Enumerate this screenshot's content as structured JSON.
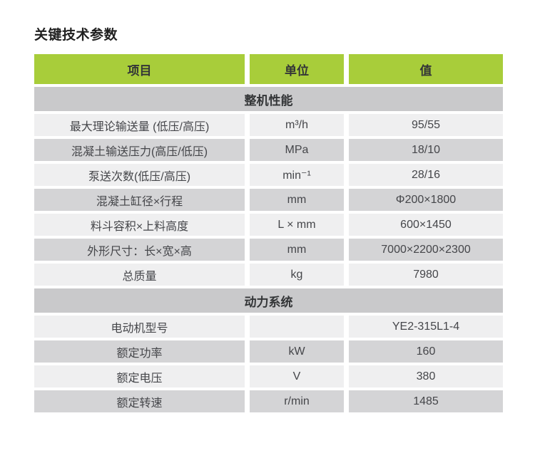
{
  "page": {
    "title": "关键技术参数"
  },
  "colors": {
    "accent_green": "#a8cd3a",
    "section_band_gray": "#c9c9cb",
    "row_light": "#efeff0",
    "row_dark": "#d4d4d6",
    "header_text": "#333537",
    "body_text": "#45464a"
  },
  "table": {
    "headers": [
      {
        "label": "项目"
      },
      {
        "label": "单位"
      },
      {
        "label": "值"
      }
    ],
    "sections": [
      {
        "title": "整机性能",
        "rows": [
          {
            "item": "最大理论输送量 (低压/高压)",
            "unit": "m³/h",
            "value": "95/55"
          },
          {
            "item": "混凝土输送压力(高压/低压)",
            "unit": "MPa",
            "value": "18/10"
          },
          {
            "item": "泵送次数(低压/高压)",
            "unit": "min⁻¹",
            "value": "28/16"
          },
          {
            "item": "混凝土缸径×行程",
            "unit": "mm",
            "value": "Φ200×1800"
          },
          {
            "item": "料斗容积×上料高度",
            "unit": "L × mm",
            "value": "600×1450"
          },
          {
            "item": "外形尺寸：长×宽×高",
            "unit": "mm",
            "value": "7000×2200×2300"
          },
          {
            "item": "总质量",
            "unit": "kg",
            "value": "7980"
          }
        ]
      },
      {
        "title": "动力系统",
        "rows": [
          {
            "item": "电动机型号",
            "unit": "",
            "value": "YE2-315L1-4"
          },
          {
            "item": "额定功率",
            "unit": "kW",
            "value": "160"
          },
          {
            "item": "额定电压",
            "unit": "V",
            "value": "380"
          },
          {
            "item": "额定转速",
            "unit": "r/min",
            "value": "1485"
          }
        ]
      }
    ]
  }
}
